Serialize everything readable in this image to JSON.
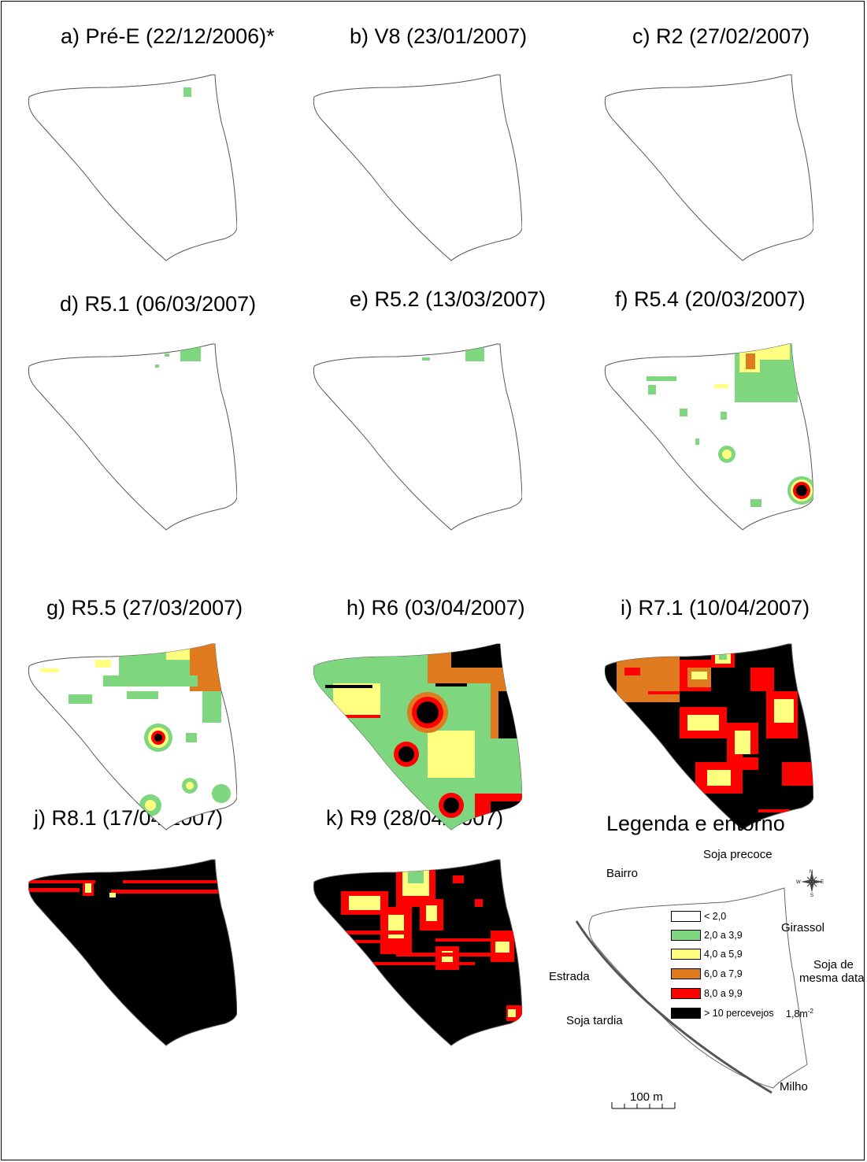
{
  "panels": [
    {
      "title": "a) Pré-E (22/12/2006)*"
    },
    {
      "title": "b) V8 (23/01/2007)"
    },
    {
      "title": "c) R2 (27/02/2007)"
    },
    {
      "title": "d) R5.1 (06/03/2007)"
    },
    {
      "title": "e) R5.2 (13/03/2007)"
    },
    {
      "title": "f) R5.4 (20/03/2007)"
    },
    {
      "title": "g) R5.5 (27/03/2007)"
    },
    {
      "title": "h) R6 (03/04/2007)"
    },
    {
      "title": "i) R7.1 (10/04/2007)"
    },
    {
      "title": "j) R8.1 (17/04/2007)"
    },
    {
      "title": "k) R9 (28/04/2007)"
    }
  ],
  "legend": {
    "title": "Legenda  e entorno",
    "surroundings": {
      "top": "Soja precoce",
      "northwest": "Bairro",
      "east_upper": "Girassol",
      "east_lower_1": "Soja de",
      "east_lower_2": "mesma data",
      "west": "Estrada",
      "southwest": "Soja tardia",
      "south": "Milho"
    },
    "classes": [
      {
        "label": "< 2,0",
        "color": "#ffffff"
      },
      {
        "label": "2,0 a 3,9",
        "color": "#7ed67e"
      },
      {
        "label": "4,0 a 5,9",
        "color": "#ffff80"
      },
      {
        "label": "6,0 a 7,9",
        "color": "#e07a1f"
      },
      {
        "label": "8,0 a 9,9",
        "color": "#ff0000"
      },
      {
        "label": "> 10 percevejos",
        "color": "#000000"
      }
    ],
    "unit": "1,8m",
    "unit_exp": "-2",
    "scale_label": "100 m",
    "compass": {
      "n": "N",
      "s": "S",
      "e": "E",
      "w": "W"
    }
  }
}
